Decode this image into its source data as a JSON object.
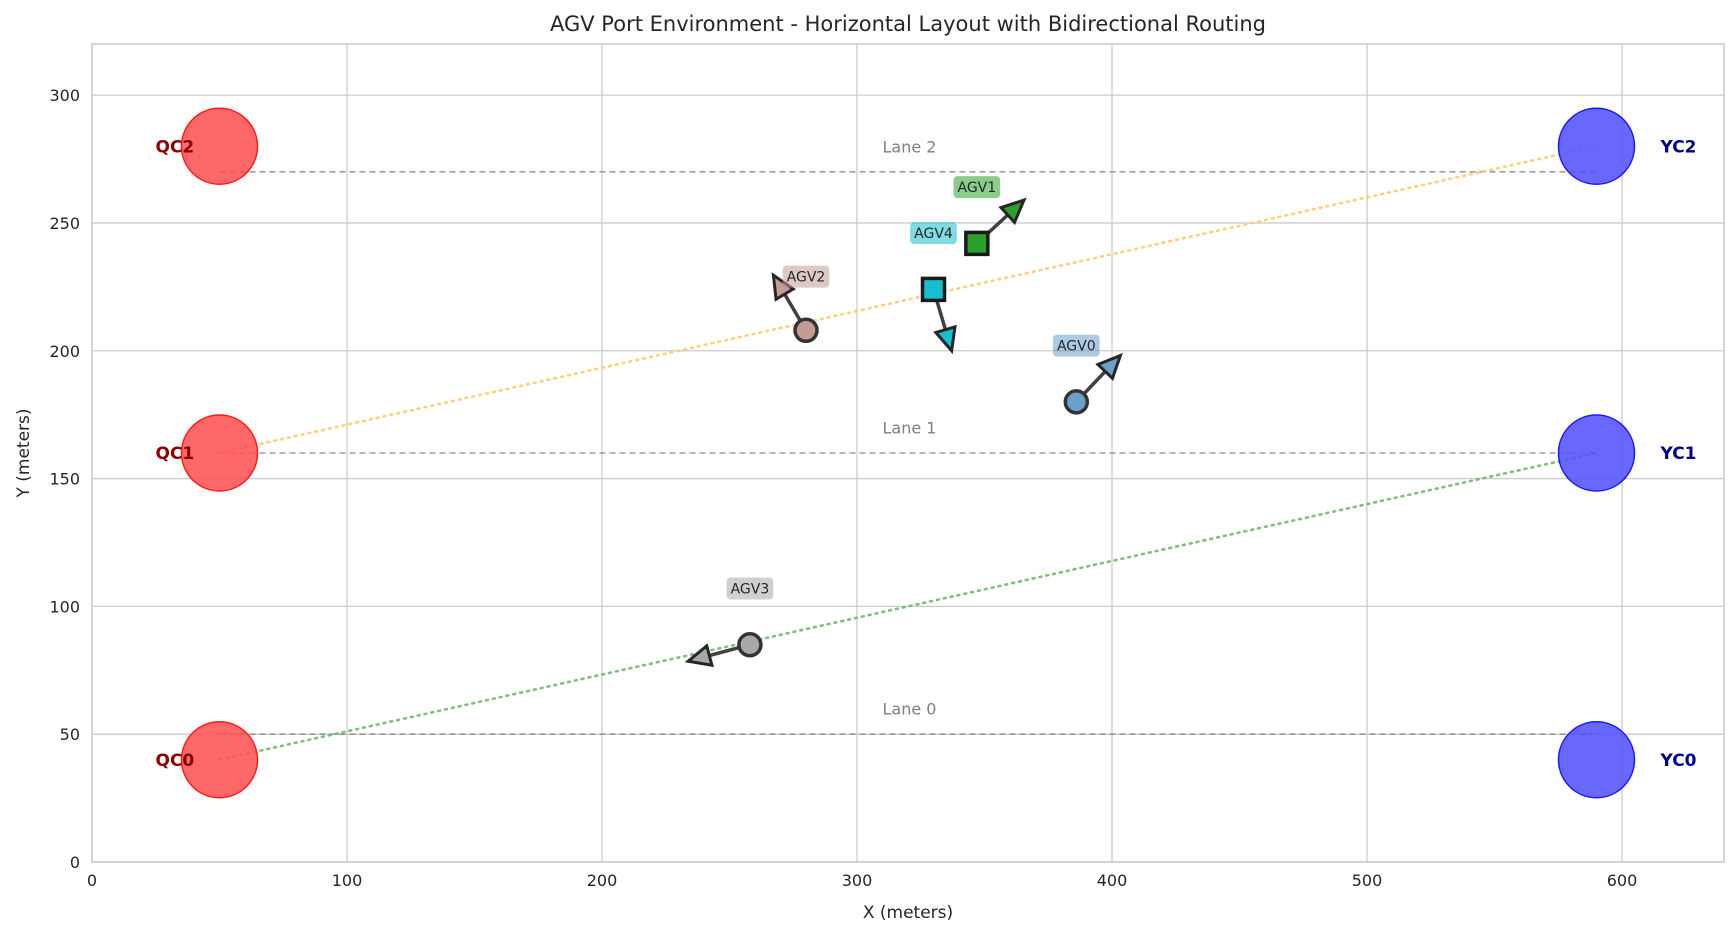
{
  "chart_data": {
    "type": "scatter",
    "title": "AGV Port Environment - Horizontal Layout with Bidirectional Routing",
    "xlabel": "X (meters)",
    "ylabel": "Y (meters)",
    "xlim": [
      0,
      640
    ],
    "ylim": [
      0,
      320
    ],
    "xticks": [
      0,
      100,
      200,
      300,
      400,
      500,
      600
    ],
    "yticks": [
      0,
      50,
      100,
      150,
      200,
      250,
      300
    ],
    "grid": true,
    "lanes": [
      {
        "label": "Lane 0",
        "y": 50,
        "x_start": 50,
        "x_end": 590
      },
      {
        "label": "Lane 1",
        "y": 160,
        "x_start": 50,
        "x_end": 590
      },
      {
        "label": "Lane 2",
        "y": 270,
        "x_start": 50,
        "x_end": 590
      }
    ],
    "quay_cranes": [
      {
        "label": "QC0",
        "x": 50,
        "y": 40,
        "color": "#ff4d4d"
      },
      {
        "label": "QC1",
        "x": 50,
        "y": 160,
        "color": "#ff4d4d"
      },
      {
        "label": "QC2",
        "x": 50,
        "y": 280,
        "color": "#ff4d4d"
      }
    ],
    "yard_cranes": [
      {
        "label": "YC0",
        "x": 590,
        "y": 40,
        "color": "#4d4dff"
      },
      {
        "label": "YC1",
        "x": 590,
        "y": 160,
        "color": "#4d4dff"
      },
      {
        "label": "YC2",
        "x": 590,
        "y": 280,
        "color": "#4d4dff"
      }
    ],
    "routes": [
      {
        "from": [
          50,
          40
        ],
        "to": [
          590,
          160
        ],
        "color": "#6ab56a"
      },
      {
        "from": [
          50,
          160
        ],
        "to": [
          590,
          280
        ],
        "color": "#ffc966"
      }
    ],
    "agvs": [
      {
        "label": "AGV0",
        "x": 386,
        "y": 180,
        "marker": "circle",
        "color": "#6b9fcc",
        "dx": 20,
        "dy": 21,
        "label_x": 386,
        "label_y": 202
      },
      {
        "label": "AGV1",
        "x": 347,
        "y": 242,
        "marker": "square",
        "color": "#2ca02c",
        "dx": 24,
        "dy": 22,
        "label_x": 347,
        "label_y": 264
      },
      {
        "label": "AGV2",
        "x": 280,
        "y": 208,
        "marker": "circle",
        "color": "#c49c94",
        "dx": -16,
        "dy": 27,
        "label_x": 280,
        "label_y": 229
      },
      {
        "label": "AGV3",
        "x": 258,
        "y": 85,
        "marker": "circle",
        "color": "#a9a9a9",
        "dx": -30,
        "dy": -8,
        "label_x": 258,
        "label_y": 107
      },
      {
        "label": "AGV4",
        "x": 330,
        "y": 224,
        "marker": "square",
        "color": "#17becf",
        "dx": 8,
        "dy": -27,
        "label_x": 330,
        "label_y": 246
      }
    ]
  }
}
